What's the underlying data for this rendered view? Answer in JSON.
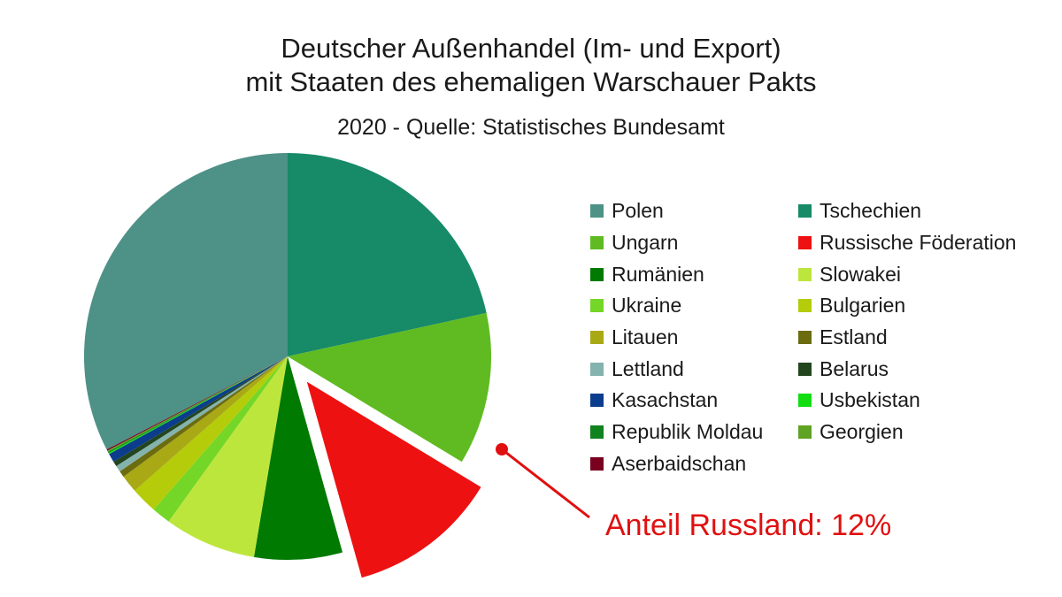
{
  "chart_data": {
    "type": "pie",
    "title_lines": [
      "Deutscher Außenhandel (Im- und Export)",
      "mit Staaten des ehemaligen Warschauer Pakts"
    ],
    "subtitle": "2020 - Quelle: Statistisches Bundesamt",
    "legend_position": "right",
    "exploded_slice": "Russische Föderation",
    "annotation": "Anteil Russland: 12%",
    "annotation_color": "#e01010",
    "slices": [
      {
        "name": "Polen",
        "value": 32.6,
        "color": "#4e9187"
      },
      {
        "name": "Tschechien",
        "value": 21.6,
        "color": "#178a68"
      },
      {
        "name": "Ungarn",
        "value": 12.1,
        "color": "#5fbb21"
      },
      {
        "name": "Russische Föderation",
        "value": 12.0,
        "color": "#ee1111"
      },
      {
        "name": "Rumänien",
        "value": 7.0,
        "color": "#007a00"
      },
      {
        "name": "Slowakei",
        "value": 7.3,
        "color": "#bde63d"
      },
      {
        "name": "Ukraine",
        "value": 1.5,
        "color": "#74d627"
      },
      {
        "name": "Bulgarien",
        "value": 2.1,
        "color": "#b4cc0a"
      },
      {
        "name": "Litauen",
        "value": 1.4,
        "color": "#a9a916"
      },
      {
        "name": "Estland",
        "value": 0.5,
        "color": "#6b6b10"
      },
      {
        "name": "Lettland",
        "value": 0.5,
        "color": "#84b2ad"
      },
      {
        "name": "Belarus",
        "value": 0.4,
        "color": "#23451e"
      },
      {
        "name": "Kasachstan",
        "value": 0.7,
        "color": "#0b3d8c"
      },
      {
        "name": "Usbekistan",
        "value": 0.1,
        "color": "#11dd11"
      },
      {
        "name": "Republik Moldau",
        "value": 0.1,
        "color": "#10821e"
      },
      {
        "name": "Georgien",
        "value": 0.1,
        "color": "#5ea321"
      },
      {
        "name": "Aserbaidschan",
        "value": 0.1,
        "color": "#7a0020"
      }
    ]
  }
}
